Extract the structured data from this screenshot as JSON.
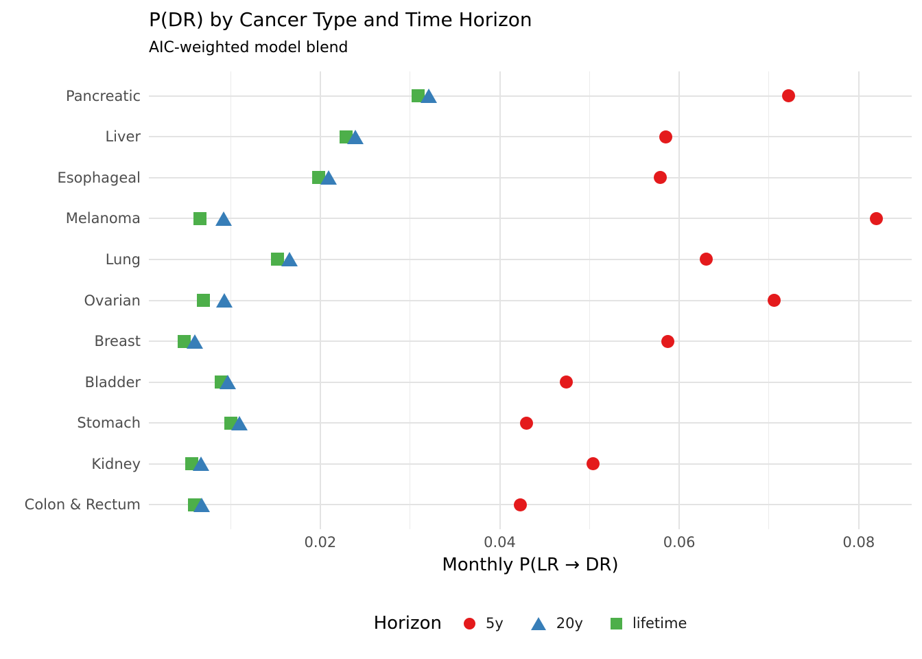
{
  "header": {
    "title": "P(DR) by Cancer Type and Time Horizon",
    "subtitle": "AIC-weighted model blend"
  },
  "x_axis": {
    "label": "Monthly P(LR → DR)",
    "tick_labels": [
      "0.02",
      "0.04",
      "0.06",
      "0.08"
    ]
  },
  "legend": {
    "title": "Horizon",
    "items": [
      {
        "label": "5y",
        "shape": "circle",
        "color": "#E41A1C"
      },
      {
        "label": "20y",
        "shape": "triangle",
        "color": "#377EB8"
      },
      {
        "label": "lifetime",
        "shape": "square",
        "color": "#4DAF4A"
      }
    ]
  },
  "chart_data": {
    "type": "scatter",
    "variant": "horizontal-dot-plot",
    "title": "P(DR) by Cancer Type and Time Horizon",
    "subtitle": "AIC-weighted model blend",
    "xlabel": "Monthly P(LR → DR)",
    "ylabel": "",
    "categories": [
      "Pancreatic",
      "Liver",
      "Esophageal",
      "Melanoma",
      "Lung",
      "Ovarian",
      "Breast",
      "Bladder",
      "Stomach",
      "Kidney",
      "Colon & Rectum"
    ],
    "series": [
      {
        "name": "5y",
        "shape": "circle",
        "color": "#E41A1C",
        "values": [
          0.0722,
          0.0585,
          0.0579,
          0.082,
          0.063,
          0.0706,
          0.0587,
          0.0474,
          0.043,
          0.0504,
          0.0423
        ]
      },
      {
        "name": "20y",
        "shape": "triangle",
        "color": "#377EB8",
        "values": [
          0.0321,
          0.0239,
          0.0209,
          0.0092,
          0.0166,
          0.0093,
          0.006,
          0.0097,
          0.011,
          0.0067,
          0.0068
        ]
      },
      {
        "name": "lifetime",
        "shape": "square",
        "color": "#4DAF4A",
        "values": [
          0.0309,
          0.0229,
          0.0198,
          0.0066,
          0.0152,
          0.007,
          0.0048,
          0.009,
          0.01,
          0.0057,
          0.006
        ]
      }
    ],
    "xlim": [
      0.0009,
      0.0859
    ],
    "xticks": [
      0.02,
      0.04,
      0.06,
      0.08
    ],
    "minor_xticks": [
      0.01,
      0.03,
      0.05,
      0.07
    ],
    "grid": true,
    "legend_position": "bottom"
  },
  "colors": {
    "series_5y": "#E41A1C",
    "series_20y": "#377EB8",
    "series_lifetime": "#4DAF4A",
    "grid_major": "#E3E3E3",
    "grid_minor": "#EBEBEB",
    "axis_text": "#4D4D4D",
    "text": "#000000",
    "background": "#FFFFFF"
  }
}
